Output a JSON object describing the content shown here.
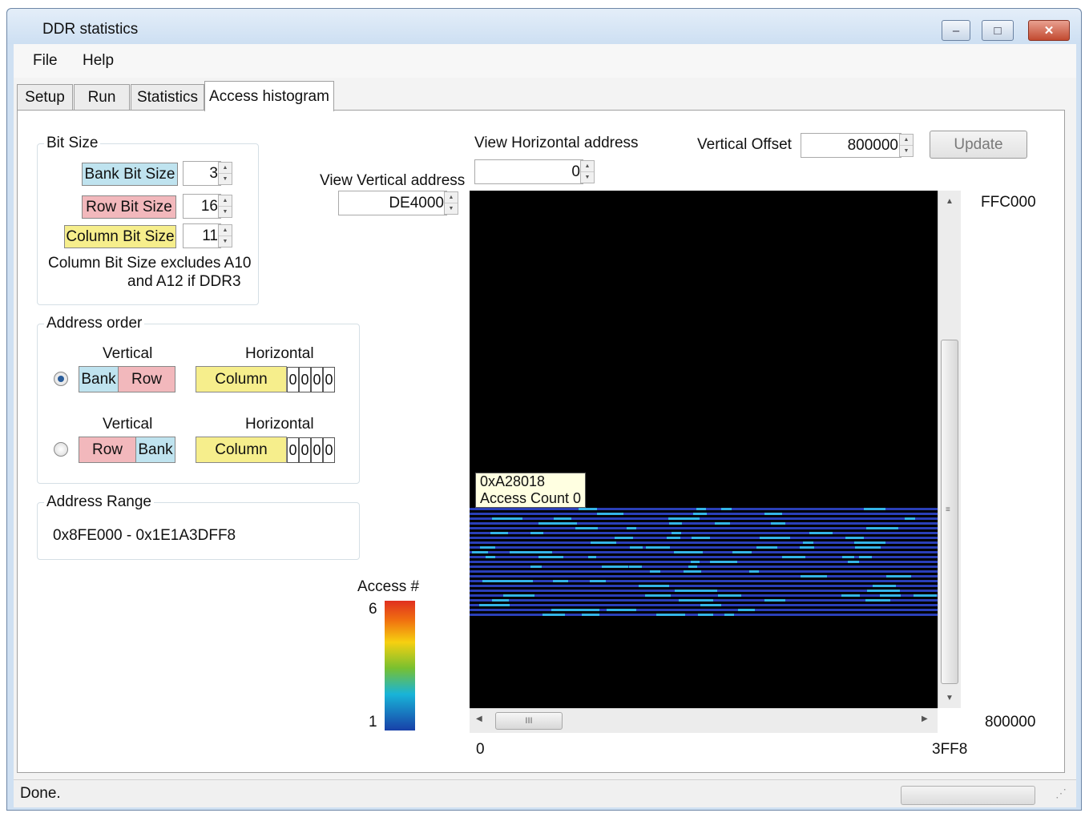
{
  "window": {
    "title": "DDR statistics",
    "minimize": "–",
    "maximize": "□",
    "close": "✕"
  },
  "menu": {
    "file": "File",
    "help": "Help"
  },
  "tabs": [
    "Setup",
    "Run",
    "Statistics",
    "Access histogram"
  ],
  "active_tab": "Access histogram",
  "bit_size": {
    "title": "Bit Size",
    "bank_label": "Bank Bit Size",
    "bank_value": "3",
    "row_label": "Row Bit Size",
    "row_value": "16",
    "column_label": "Column Bit Size",
    "column_value": "11",
    "note_line1": "Column Bit Size excludes A10",
    "note_line2": "and A12 if DDR3"
  },
  "address_order": {
    "title": "Address order",
    "option1": {
      "selected": true,
      "vertical_label": "Vertical",
      "horizontal_label": "Horizontal",
      "first": "Bank",
      "second": "Row",
      "column": "Column",
      "bits": [
        "0",
        "0",
        "0",
        "0"
      ]
    },
    "option2": {
      "selected": false,
      "vertical_label": "Vertical",
      "horizontal_label": "Horizontal",
      "first": "Row",
      "second": "Bank",
      "column": "Column",
      "bits": [
        "0",
        "0",
        "0",
        "0"
      ]
    }
  },
  "address_range": {
    "title": "Address Range",
    "value": "0x8FE000 - 0x1E1A3DFF8"
  },
  "view": {
    "horizontal_label": "View Horizontal address",
    "horizontal_value": "0",
    "vertical_label": "View Vertical address",
    "vertical_value": "DE4000",
    "vertical_offset_label": "Vertical Offset",
    "vertical_offset_value": "800000",
    "update_button": "Update"
  },
  "histogram": {
    "y_top": "FFC000",
    "y_bottom": "800000",
    "x_left": "0",
    "x_right": "3FF8",
    "tooltip_line1": "0xA28018",
    "tooltip_line2": "Access Count 0",
    "hscroll_thumb": "III",
    "legend_title": "Access #",
    "legend_max": "6",
    "legend_min": "1",
    "colors": {
      "background": "#000000",
      "line": "#2a3fb8",
      "highlight": "#34b4e8"
    }
  },
  "status": {
    "text": "Done."
  }
}
